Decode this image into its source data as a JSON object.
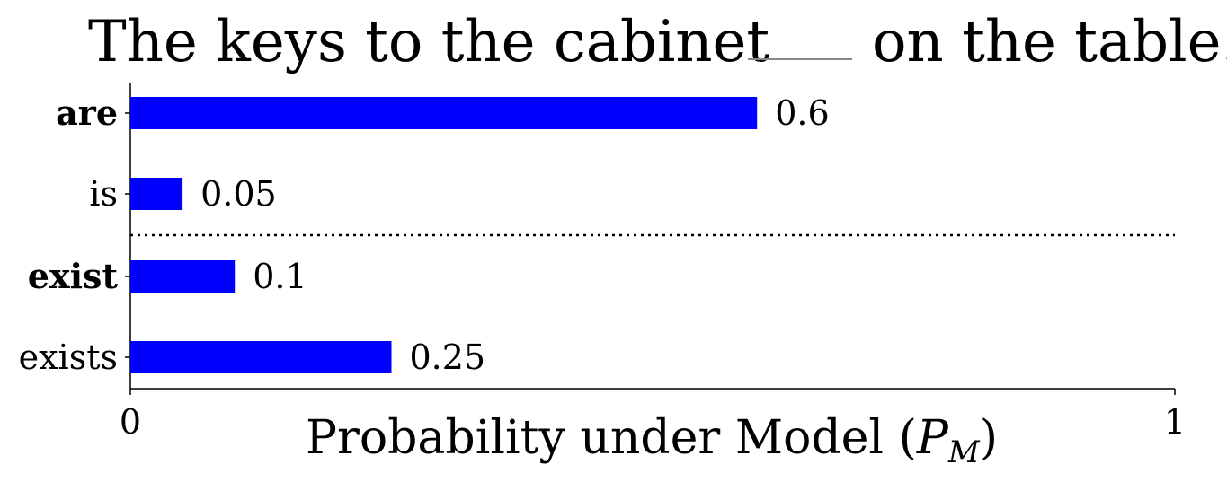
{
  "chart_data": {
    "type": "bar",
    "orientation": "horizontal",
    "title": {
      "before_blank": "The keys to the cabinet",
      "after_blank": "on the table."
    },
    "categories": [
      "are",
      "is",
      "exist",
      "exists"
    ],
    "bold_categories": [
      "are",
      "exist"
    ],
    "values": [
      0.6,
      0.05,
      0.1,
      0.25
    ],
    "value_labels": [
      "0.6",
      "0.05",
      "0.1",
      "0.25"
    ],
    "xlabel": {
      "main": "Probability under Model (",
      "symbol": "P",
      "subscript": "M",
      "close": ")"
    },
    "xlim": [
      0,
      1
    ],
    "xticks": [
      "0",
      "1"
    ],
    "bar_color": "#0000ff",
    "separator": "dotted line between 'is' and 'exist'",
    "grid": false
  }
}
